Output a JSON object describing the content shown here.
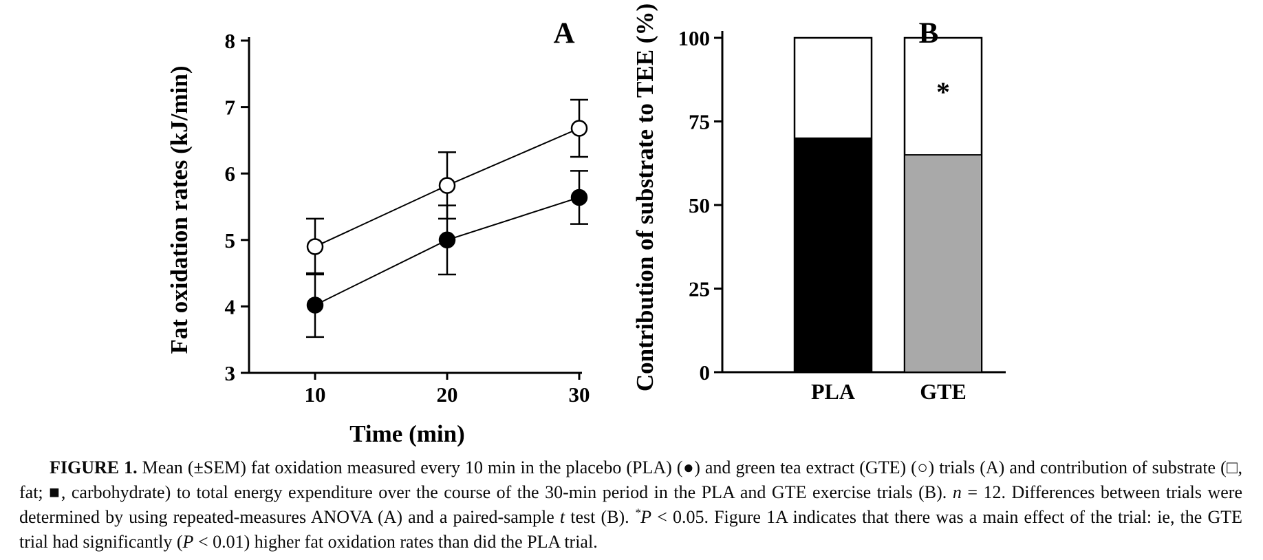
{
  "chart_data": [
    {
      "id": "A",
      "type": "line",
      "panel_label": "A",
      "xlabel": "Time (min)",
      "ylabel": "Fat oxidation rates (kJ/min)",
      "x": [
        10,
        20,
        30
      ],
      "xticks": [
        10,
        20,
        30
      ],
      "yticks": [
        3,
        4,
        5,
        6,
        7,
        8
      ],
      "xlim": [
        5,
        30
      ],
      "ylim": [
        3,
        8
      ],
      "grid": false,
      "legend": "none (markers explained in caption)",
      "series": [
        {
          "name": "GTE (green tea extract)",
          "marker": "open-circle",
          "values": [
            4.9,
            5.82,
            6.68
          ],
          "sem": [
            0.42,
            0.5,
            0.43
          ],
          "line_color": "#000000",
          "marker_fill": "#ffffff"
        },
        {
          "name": "PLA (placebo)",
          "marker": "filled-circle",
          "values": [
            4.02,
            5.0,
            5.64
          ],
          "sem": [
            0.48,
            0.52,
            0.4
          ],
          "line_color": "#000000",
          "marker_fill": "#000000"
        }
      ]
    },
    {
      "id": "B",
      "type": "stacked-bar",
      "panel_label": "B",
      "xlabel": "",
      "ylabel": "Contribution of substrate to TEE (%)",
      "categories": [
        "PLA",
        "GTE"
      ],
      "yticks": [
        0,
        25,
        50,
        75,
        100
      ],
      "ylim": [
        0,
        100
      ],
      "grid": false,
      "series": [
        {
          "name": "carbohydrate (lower segment)",
          "values": [
            70,
            65
          ],
          "fills": [
            "#000000",
            "#a9a9a9"
          ]
        },
        {
          "name": "fat (upper segment)",
          "values": [
            30,
            35
          ],
          "fills": [
            "#ffffff",
            "#ffffff"
          ]
        }
      ],
      "annotations": [
        {
          "text": "*",
          "category": "GTE",
          "y": 86,
          "meaning": "P < 0.05"
        }
      ]
    }
  ],
  "caption": {
    "segments": [
      {
        "text": "FIGURE 1. ",
        "bold": true
      },
      {
        "text": "Mean (±SEM) fat oxidation measured every 10 min in the placebo (PLA) (●) and green tea extract (GTE) (○) trials (A) and contribution of substrate (□, fat; ■, carbohydrate) to total energy expenditure over the course of the 30-min period in the PLA and GTE exercise trials (B). "
      },
      {
        "text": "n",
        "italic": true
      },
      {
        "text": " = 12. Differences between trials were determined by using repeated-measures ANOVA (A) and a paired-sample "
      },
      {
        "text": "t",
        "italic": true
      },
      {
        "text": " test (B). "
      },
      {
        "text": "*",
        "sup": true,
        "italic": true
      },
      {
        "text": "P",
        "italic": true
      },
      {
        "text": " < 0.05. Figure 1A indicates that there was a main effect of the trial: ie, the GTE trial had significantly ("
      },
      {
        "text": "P",
        "italic": true
      },
      {
        "text": " < 0.01) higher fat oxidation rates than did the PLA trial."
      }
    ]
  }
}
